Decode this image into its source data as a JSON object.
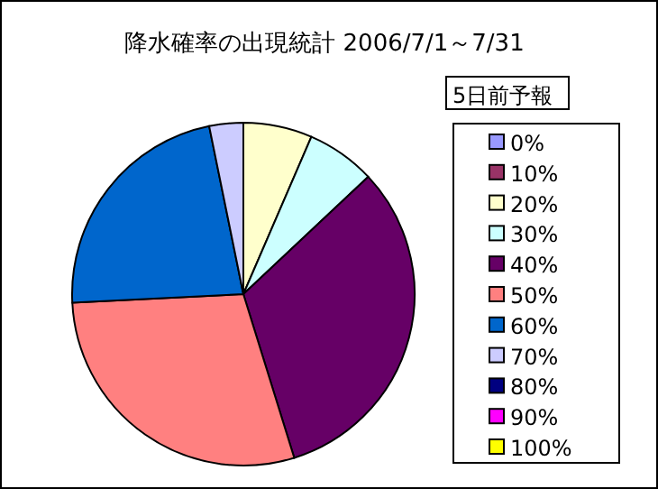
{
  "chart_data": {
    "type": "pie",
    "title": "降水確率の出現統計  2006/7/1～7/31",
    "legend_title": "5日前予報",
    "categories": [
      "0%",
      "10%",
      "20%",
      "30%",
      "40%",
      "50%",
      "60%",
      "70%",
      "80%",
      "90%",
      "100%"
    ],
    "values": [
      0,
      0,
      6.5,
      6.5,
      32.2,
      29.0,
      22.6,
      3.2,
      0,
      0,
      0
    ],
    "colors": [
      "#9999ff",
      "#993366",
      "#ffffcc",
      "#ccffff",
      "#660066",
      "#ff8080",
      "#0066cc",
      "#ccccff",
      "#000080",
      "#ff00ff",
      "#ffff00"
    ],
    "legend": "right"
  }
}
